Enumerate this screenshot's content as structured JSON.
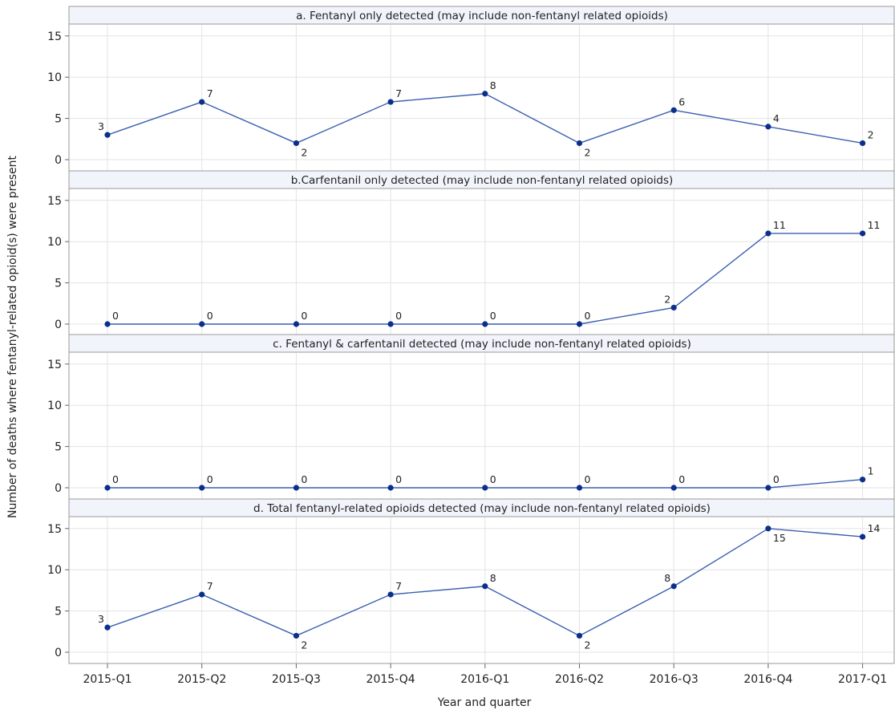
{
  "chart_data": {
    "type": "line",
    "ylabel": "Number of deaths where fentanyl-related opioid(s) were present",
    "xlabel": "Year and quarter",
    "categories": [
      "2015-Q1",
      "2015-Q2",
      "2015-Q3",
      "2015-Q4",
      "2016-Q1",
      "2016-Q2",
      "2016-Q3",
      "2016-Q4",
      "2017-Q1"
    ],
    "ylim": [
      0,
      15
    ],
    "yticks": [
      0,
      5,
      10,
      15
    ],
    "grid": true,
    "line_color": "#3a5fb0",
    "marker_color": "#0b2f8a",
    "panels": [
      {
        "title": "a. Fentanyl only detected (may include non-fentanyl related opioids)",
        "values": [
          3,
          7,
          2,
          7,
          8,
          2,
          6,
          4,
          2
        ],
        "label_positions": [
          "above-left",
          "above-right",
          "below-right",
          "above-right",
          "above-right",
          "below-right",
          "above-right",
          "above-right",
          "above-right"
        ]
      },
      {
        "title": "b.Carfentanil only detected (may include non-fentanyl related opioids)",
        "values": [
          0,
          0,
          0,
          0,
          0,
          0,
          2,
          11,
          11
        ],
        "label_positions": [
          "above-right",
          "above-right",
          "above-right",
          "above-right",
          "above-right",
          "above-right",
          "above-left",
          "above-right",
          "above-right"
        ]
      },
      {
        "title": "c. Fentanyl & carfentanil detected (may include non-fentanyl related opioids)",
        "values": [
          0,
          0,
          0,
          0,
          0,
          0,
          0,
          0,
          1
        ],
        "label_positions": [
          "above-right",
          "above-right",
          "above-right",
          "above-right",
          "above-right",
          "above-right",
          "above-right",
          "above-right",
          "above-right"
        ]
      },
      {
        "title": "d. Total fentanyl-related opioids detected (may include non-fentanyl related opioids)",
        "values": [
          3,
          7,
          2,
          7,
          8,
          2,
          8,
          15,
          14
        ],
        "label_positions": [
          "above-left",
          "above-right",
          "below-right",
          "above-right",
          "above-right",
          "below-right",
          "above-left",
          "below-right",
          "above-right"
        ]
      }
    ]
  }
}
